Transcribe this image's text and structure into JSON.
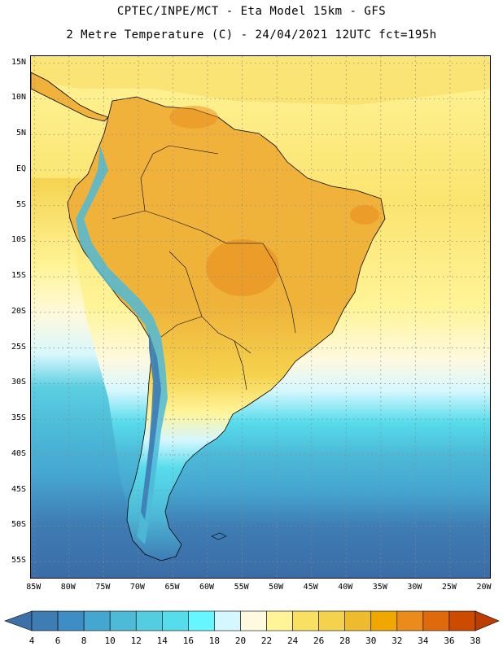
{
  "header": {
    "line1": "CPTEC/INPE/MCT -  Eta Model 15km - GFS",
    "line2": "2 Metre Temperature (C) - 24/04/2021 12UTC fct=195h"
  },
  "map": {
    "lat_labels": [
      "15N",
      "10N",
      "5N",
      "EQ",
      "5S",
      "10S",
      "15S",
      "20S",
      "25S",
      "30S",
      "35S",
      "40S",
      "45S",
      "50S",
      "55S"
    ],
    "lon_labels": [
      "85W",
      "80W",
      "75W",
      "70W",
      "65W",
      "60W",
      "55W",
      "50W",
      "45W",
      "40W",
      "35W",
      "30W",
      "25W",
      "20W"
    ],
    "lat_values": [
      15,
      10,
      5,
      0,
      -5,
      -10,
      -15,
      -20,
      -25,
      -30,
      -35,
      -40,
      -45,
      -50,
      -55
    ],
    "lon_values": [
      -85,
      -80,
      -75,
      -70,
      -65,
      -60,
      -55,
      -50,
      -45,
      -40,
      -35,
      -30,
      -25,
      -20
    ],
    "lat_range": [
      -57.5,
      16
    ],
    "lon_range": [
      -85.5,
      -19
    ],
    "grid": "dotted"
  },
  "colorbar": {
    "labels": [
      "4",
      "6",
      "8",
      "10",
      "12",
      "14",
      "16",
      "18",
      "20",
      "22",
      "24",
      "26",
      "28",
      "30",
      "32",
      "34",
      "36",
      "38"
    ],
    "colors": [
      "#3e7cb4",
      "#3f8dc5",
      "#45a6d0",
      "#4dbad8",
      "#55cde0",
      "#57dceb",
      "#66f6ff",
      "#d5f7ff",
      "#fff9e0",
      "#fff498",
      "#f9e063",
      "#f5d24d",
      "#efbb2e",
      "#f0a800",
      "#ea8b1c",
      "#e06a0b",
      "#cc4b00"
    ],
    "low_color": "#3d6fa9",
    "high_color": "#bb3d00"
  }
}
